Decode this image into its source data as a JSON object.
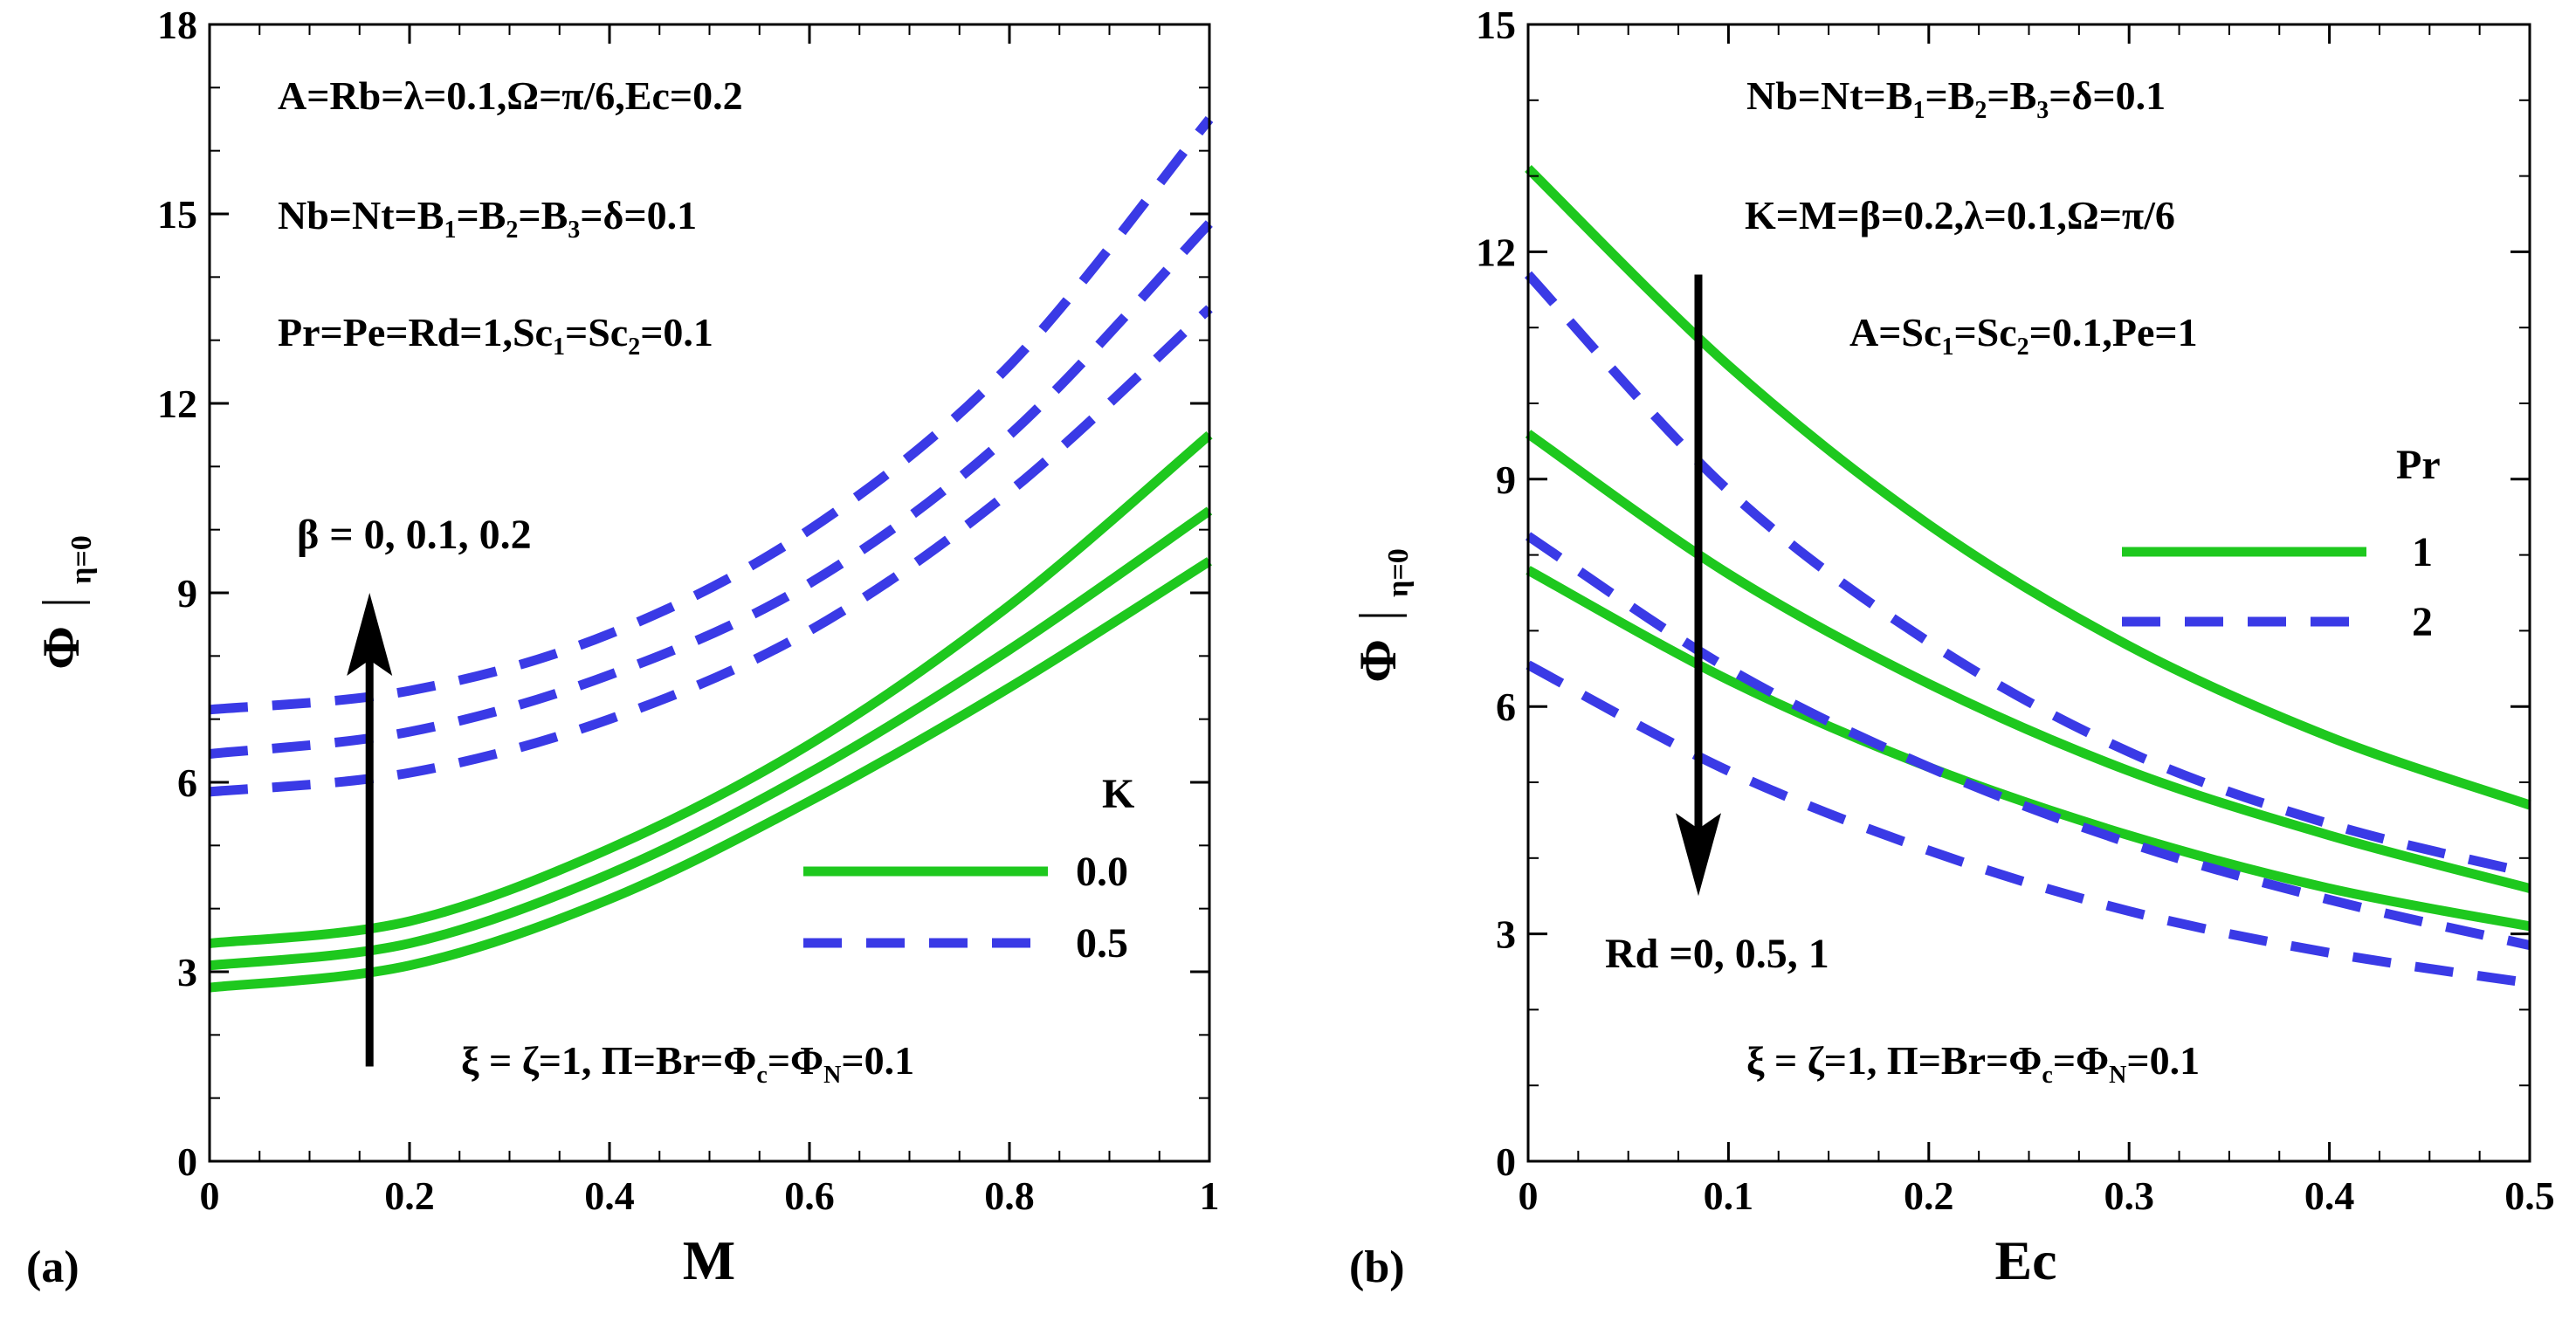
{
  "colors": {
    "green": "#1ec81e",
    "blue": "#3a3ae6",
    "axis": "#000000",
    "arrow": "#000000"
  },
  "chart_data": [
    {
      "type": "line",
      "panel_label": "(a)",
      "xlabel": "M",
      "ylabel_main": "Φ",
      "ylabel_sub": "η=0",
      "xlim": [
        0,
        1
      ],
      "ylim": [
        0,
        18
      ],
      "xticks": [
        "0",
        "0.2",
        "0.4",
        "0.6",
        "0.8",
        "1"
      ],
      "xtick_values": [
        0,
        0.2,
        0.4,
        0.6,
        0.8,
        1
      ],
      "yticks": [
        "0",
        "3",
        "6",
        "9",
        "12",
        "15",
        "18"
      ],
      "ytick_values": [
        0,
        3,
        6,
        9,
        12,
        15,
        18
      ],
      "x": [
        0,
        0.2,
        0.4,
        0.6,
        0.8,
        1.0
      ],
      "series": [
        {
          "name": "K = 0.0, β = 0",
          "style": "solid",
          "color": "green",
          "values": [
            2.75,
            3.1,
            4.15,
            5.7,
            7.5,
            9.5
          ]
        },
        {
          "name": "K = 0.0, β = 0.1",
          "style": "solid",
          "color": "green",
          "values": [
            3.1,
            3.45,
            4.55,
            6.15,
            8.1,
            10.3
          ]
        },
        {
          "name": "K = 0.0, β = 0.2",
          "style": "solid",
          "color": "green",
          "values": [
            3.45,
            3.8,
            4.95,
            6.6,
            8.8,
            11.5
          ]
        },
        {
          "name": "K = 0.5, β = 0",
          "style": "dashed",
          "color": "blue",
          "values": [
            5.85,
            6.15,
            7.0,
            8.4,
            10.6,
            13.5
          ]
        },
        {
          "name": "K = 0.5, β = 0.1",
          "style": "dashed",
          "color": "blue",
          "values": [
            6.45,
            6.8,
            7.7,
            9.15,
            11.5,
            14.85
          ]
        },
        {
          "name": "K = 0.5, β = 0.2",
          "style": "dashed",
          "color": "blue",
          "values": [
            7.15,
            7.45,
            8.35,
            10.0,
            12.6,
            16.5
          ]
        }
      ],
      "params": {
        "line1": "A=Rb=λ=0.1,Ω=π/6,Ec=0.2",
        "line2_a": "Nb=Nt=B",
        "line2_s1": "1",
        "line2_b": "=B",
        "line2_s2": "2",
        "line2_c": "=B",
        "line2_s3": "3",
        "line2_d": "=δ=0.1",
        "line3_a": "Pr=Pe=Rd=1,Sc",
        "line3_s1": "1",
        "line3_b": "=Sc",
        "line3_s2": "2",
        "line3_c": "=0.1",
        "bottom_a": "ξ = ζ=1, Π=Br=Φ",
        "bottom_s1": "c",
        "bottom_b": "=Φ",
        "bottom_s2": "N",
        "bottom_c": "=0.1"
      },
      "arrow": {
        "label": "β = 0, 0.1, 0.2",
        "direction": "up",
        "x": 0.16,
        "y_from": 1.5,
        "y_to": 9.0
      },
      "legend": {
        "title": "K",
        "entries": [
          {
            "label": "0.0",
            "style": "solid",
            "color": "green"
          },
          {
            "label": "0.5",
            "style": "dashed",
            "color": "blue"
          }
        ]
      }
    },
    {
      "type": "line",
      "panel_label": "(b)",
      "xlabel": "Ec",
      "ylabel_main": "Φ",
      "ylabel_sub": "η=0",
      "xlim": [
        0,
        0.5
      ],
      "ylim": [
        0,
        15
      ],
      "xticks": [
        "0",
        "0.1",
        "0.2",
        "0.3",
        "0.4",
        "0.5"
      ],
      "xtick_values": [
        0,
        0.1,
        0.2,
        0.3,
        0.4,
        0.5
      ],
      "yticks": [
        "0",
        "3",
        "6",
        "9",
        "12",
        "15"
      ],
      "ytick_values": [
        0,
        3,
        6,
        9,
        12,
        15
      ],
      "x": [
        0,
        0.1,
        0.2,
        0.3,
        0.4,
        0.5
      ],
      "series": [
        {
          "name": "Pr = 1, Rd = 0",
          "style": "solid",
          "color": "green",
          "values": [
            13.1,
            10.5,
            8.4,
            6.8,
            5.6,
            4.7
          ]
        },
        {
          "name": "Pr = 1, Rd = 0.5",
          "style": "solid",
          "color": "green",
          "values": [
            9.6,
            7.75,
            6.3,
            5.15,
            4.3,
            3.6
          ]
        },
        {
          "name": "Pr = 1, Rd = 1",
          "style": "solid",
          "color": "green",
          "values": [
            7.8,
            6.35,
            5.2,
            4.3,
            3.6,
            3.1
          ]
        },
        {
          "name": "Pr = 2, Rd = 0",
          "style": "dashed",
          "color": "blue",
          "values": [
            11.7,
            8.85,
            6.85,
            5.4,
            4.45,
            3.8
          ]
        },
        {
          "name": "Pr = 2, Rd = 0.5",
          "style": "dashed",
          "color": "blue",
          "values": [
            8.25,
            6.5,
            5.2,
            4.2,
            3.45,
            2.85
          ]
        },
        {
          "name": "Pr = 2, Rd = 1",
          "style": "dashed",
          "color": "blue",
          "values": [
            6.55,
            5.15,
            4.1,
            3.3,
            2.75,
            2.35
          ]
        }
      ],
      "params": {
        "line1_a": "Nb=Nt=B",
        "line1_s1": "1",
        "line1_b": "=B",
        "line1_s2": "2",
        "line1_c": "=B",
        "line1_s3": "3",
        "line1_d": "=δ=0.1",
        "line2": "K=M=β=0.2,λ=0.1,Ω=π/6",
        "line3_a": "A=Sc",
        "line3_s1": "1",
        "line3_b": "=Sc",
        "line3_s2": "2",
        "line3_c": "=0.1,Pe=1",
        "bottom_a": "ξ = ζ=1, Π=Br=Φ",
        "bottom_s1": "c",
        "bottom_b": "=Φ",
        "bottom_s2": "N",
        "bottom_c": "=0.1"
      },
      "arrow": {
        "label": "Rd =0, 0.5, 1",
        "direction": "down",
        "x": 0.085,
        "y_from": 11.7,
        "y_to": 3.5
      },
      "legend": {
        "title": "Pr",
        "entries": [
          {
            "label": "1",
            "style": "solid",
            "color": "green"
          },
          {
            "label": "2",
            "style": "dashed",
            "color": "blue"
          }
        ]
      }
    }
  ]
}
